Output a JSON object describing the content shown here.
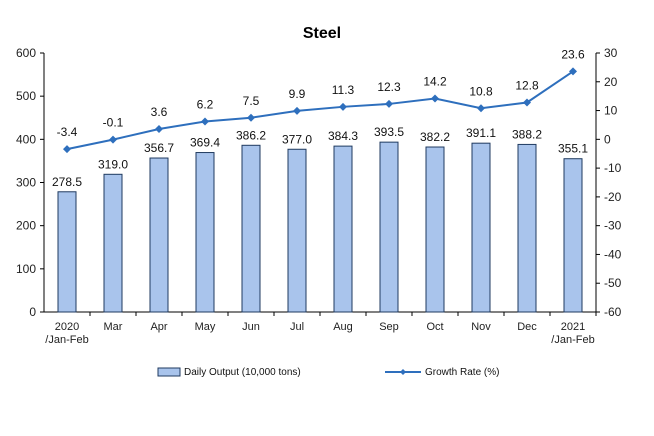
{
  "chart_data": {
    "type": "bar",
    "title": "Steel",
    "categories": [
      [
        "2020",
        "/Jan-Feb"
      ],
      [
        "Mar"
      ],
      [
        "Apr"
      ],
      [
        "May"
      ],
      [
        "Jun"
      ],
      [
        "Jul"
      ],
      [
        "Aug"
      ],
      [
        "Sep"
      ],
      [
        "Oct"
      ],
      [
        "Nov"
      ],
      [
        "Dec"
      ],
      [
        "2021",
        "/Jan-Feb"
      ]
    ],
    "series": [
      {
        "name": "Daily Output (10,000 tons)",
        "type": "bar",
        "axis": "left",
        "values": [
          278.5,
          319.0,
          356.7,
          369.4,
          386.2,
          377.0,
          384.3,
          393.5,
          382.2,
          391.1,
          388.2,
          355.1
        ],
        "labels": [
          "278.5",
          "319.0",
          "356.7",
          "369.4",
          "386.2",
          "377.0",
          "384.3",
          "393.5",
          "382.2",
          "391.1",
          "388.2",
          "355.1"
        ]
      },
      {
        "name": "Growth Rate (%)",
        "type": "line",
        "axis": "right",
        "values": [
          -3.4,
          -0.1,
          3.6,
          6.2,
          7.5,
          9.9,
          11.3,
          12.3,
          14.2,
          10.8,
          12.8,
          23.6
        ],
        "labels": [
          "-3.4",
          "-0.1",
          "3.6",
          "6.2",
          "7.5",
          "9.9",
          "11.3",
          "12.3",
          "14.2",
          "10.8",
          "12.8",
          "23.6"
        ]
      }
    ],
    "left_axis": {
      "ylim": [
        0,
        600
      ],
      "ticks": [
        "0",
        "100",
        "200",
        "300",
        "400",
        "500",
        "600"
      ]
    },
    "right_axis": {
      "ylim": [
        -60,
        30
      ],
      "ticks": [
        "-60",
        "-50",
        "-40",
        "-30",
        "-20",
        "-10",
        "0",
        "10",
        "20",
        "30"
      ]
    },
    "legend": "bottom",
    "grid": false,
    "colors": {
      "bar_fill": "#a9c4ec",
      "bar_stroke": "#1f3a5f",
      "line": "#2e6fbd",
      "axis": "#000000"
    }
  }
}
